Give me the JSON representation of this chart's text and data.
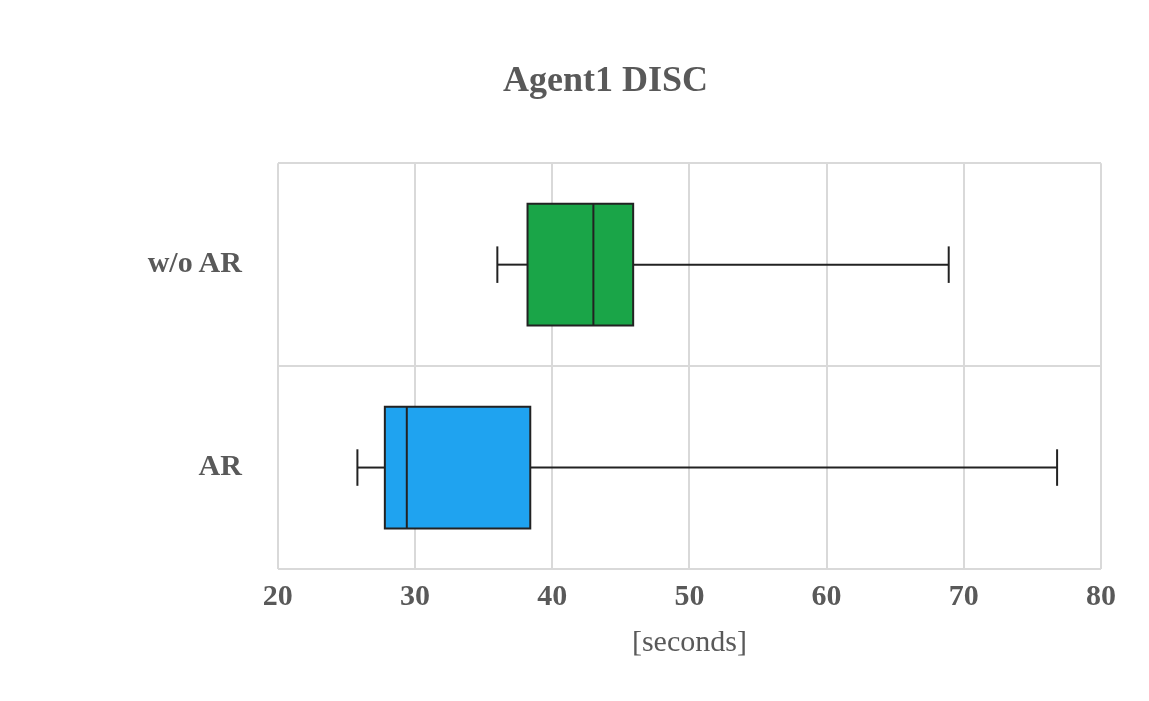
{
  "chart_data": {
    "type": "box",
    "title": "Agent1 DISC",
    "xlabel": "[seconds]",
    "orientation": "horizontal",
    "categories": [
      "w/o AR",
      "AR"
    ],
    "boxes": [
      {
        "low": 36,
        "q1": 38.2,
        "median": 43,
        "q3": 45.9,
        "high": 68.9
      },
      {
        "low": 25.8,
        "q1": 27.8,
        "median": 29.4,
        "q3": 38.4,
        "high": 76.8
      }
    ],
    "colors": [
      "#1aa548",
      "#1fa3f0"
    ],
    "xlim": [
      20,
      80
    ],
    "xticks": [
      20,
      30,
      40,
      50,
      60,
      70,
      80
    ],
    "grid": true
  }
}
